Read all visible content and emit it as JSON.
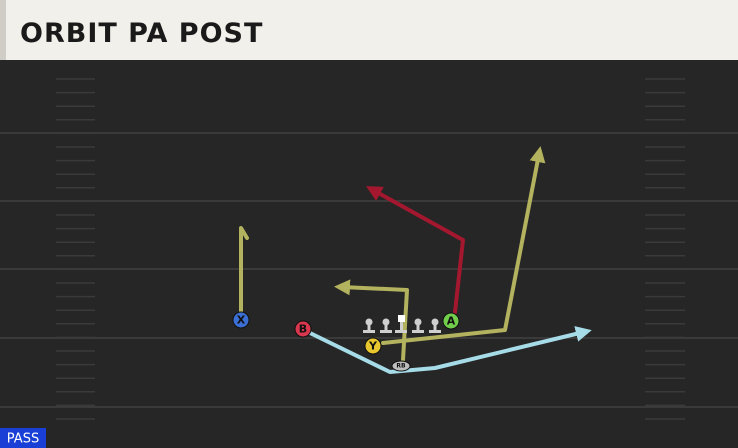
{
  "header": {
    "title": "ORBIT PA POST"
  },
  "players": [
    {
      "label": "X"
    },
    {
      "label": "B"
    },
    {
      "label": "A"
    },
    {
      "label": "Y"
    },
    {
      "label": "RB"
    }
  ],
  "footer": {
    "tag": "PASS"
  }
}
